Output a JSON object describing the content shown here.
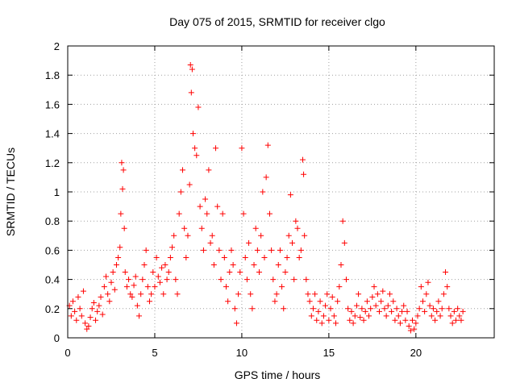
{
  "chart_data": {
    "type": "scatter",
    "title": "Day 075 of 2015, SRMTID for receiver clgo",
    "xlabel": "GPS time / hours",
    "ylabel": "SRMTID / TECUs",
    "xlim": [
      0,
      24.5
    ],
    "ylim": [
      0,
      2
    ],
    "x_ticks": [
      0,
      5,
      10,
      15,
      20
    ],
    "x_tick_labels": [
      "0",
      "5",
      "10",
      "15",
      "20"
    ],
    "y_ticks": [
      0,
      0.2,
      0.4,
      0.6,
      0.8,
      1,
      1.2,
      1.4,
      1.6,
      1.8,
      2
    ],
    "y_tick_labels": [
      "0",
      "0.2",
      "0.4",
      "0.6",
      "0.8",
      "1",
      "1.2",
      "1.4",
      "1.6",
      "1.8",
      "2"
    ],
    "grid": true,
    "marker": "plus",
    "color": "#ff0000",
    "series": [
      {
        "name": "SRMTID",
        "points": [
          [
            0.1,
            0.22
          ],
          [
            0.2,
            0.15
          ],
          [
            0.3,
            0.25
          ],
          [
            0.4,
            0.18
          ],
          [
            0.5,
            0.12
          ],
          [
            0.6,
            0.28
          ],
          [
            0.7,
            0.2
          ],
          [
            0.8,
            0.15
          ],
          [
            0.9,
            0.32
          ],
          [
            1.0,
            0.1
          ],
          [
            1.1,
            0.06
          ],
          [
            1.2,
            0.08
          ],
          [
            1.3,
            0.14
          ],
          [
            1.4,
            0.2
          ],
          [
            1.5,
            0.24
          ],
          [
            1.6,
            0.12
          ],
          [
            1.7,
            0.18
          ],
          [
            1.8,
            0.22
          ],
          [
            1.9,
            0.28
          ],
          [
            2.0,
            0.16
          ],
          [
            2.1,
            0.35
          ],
          [
            2.2,
            0.42
          ],
          [
            2.3,
            0.3
          ],
          [
            2.4,
            0.25
          ],
          [
            2.5,
            0.38
          ],
          [
            2.6,
            0.45
          ],
          [
            2.7,
            0.33
          ],
          [
            2.8,
            0.5
          ],
          [
            2.9,
            0.55
          ],
          [
            3.0,
            0.62
          ],
          [
            3.05,
            0.85
          ],
          [
            3.1,
            1.2
          ],
          [
            3.15,
            1.02
          ],
          [
            3.2,
            1.15
          ],
          [
            3.25,
            0.75
          ],
          [
            3.3,
            0.45
          ],
          [
            3.4,
            0.35
          ],
          [
            3.5,
            0.4
          ],
          [
            3.6,
            0.3
          ],
          [
            3.7,
            0.28
          ],
          [
            3.8,
            0.36
          ],
          [
            3.9,
            0.42
          ],
          [
            4.0,
            0.22
          ],
          [
            4.1,
            0.15
          ],
          [
            4.2,
            0.3
          ],
          [
            4.3,
            0.4
          ],
          [
            4.4,
            0.5
          ],
          [
            4.5,
            0.6
          ],
          [
            4.6,
            0.35
          ],
          [
            4.7,
            0.25
          ],
          [
            4.8,
            0.3
          ],
          [
            4.9,
            0.45
          ],
          [
            5.0,
            0.35
          ],
          [
            5.1,
            0.55
          ],
          [
            5.2,
            0.42
          ],
          [
            5.3,
            0.38
          ],
          [
            5.4,
            0.48
          ],
          [
            5.5,
            0.3
          ],
          [
            5.6,
            0.5
          ],
          [
            5.7,
            0.4
          ],
          [
            5.8,
            0.45
          ],
          [
            5.9,
            0.55
          ],
          [
            6.0,
            0.62
          ],
          [
            6.1,
            0.7
          ],
          [
            6.2,
            0.4
          ],
          [
            6.3,
            0.3
          ],
          [
            6.4,
            0.85
          ],
          [
            6.5,
            1.0
          ],
          [
            6.6,
            1.15
          ],
          [
            6.7,
            0.75
          ],
          [
            6.8,
            0.55
          ],
          [
            6.9,
            0.7
          ],
          [
            7.0,
            1.05
          ],
          [
            7.05,
            1.87
          ],
          [
            7.1,
            1.68
          ],
          [
            7.15,
            1.84
          ],
          [
            7.2,
            1.4
          ],
          [
            7.3,
            1.3
          ],
          [
            7.4,
            1.25
          ],
          [
            7.5,
            1.58
          ],
          [
            7.6,
            0.9
          ],
          [
            7.7,
            0.75
          ],
          [
            7.8,
            0.6
          ],
          [
            7.9,
            0.95
          ],
          [
            8.0,
            0.85
          ],
          [
            8.1,
            1.15
          ],
          [
            8.2,
            0.65
          ],
          [
            8.3,
            0.7
          ],
          [
            8.4,
            0.5
          ],
          [
            8.5,
            1.3
          ],
          [
            8.6,
            0.9
          ],
          [
            8.7,
            0.6
          ],
          [
            8.8,
            0.4
          ],
          [
            8.9,
            0.85
          ],
          [
            9.0,
            0.55
          ],
          [
            9.1,
            0.35
          ],
          [
            9.2,
            0.25
          ],
          [
            9.3,
            0.45
          ],
          [
            9.4,
            0.6
          ],
          [
            9.5,
            0.5
          ],
          [
            9.6,
            0.2
          ],
          [
            9.7,
            0.1
          ],
          [
            9.8,
            0.3
          ],
          [
            9.9,
            0.45
          ],
          [
            10.0,
            1.3
          ],
          [
            10.1,
            0.85
          ],
          [
            10.2,
            0.55
          ],
          [
            10.3,
            0.4
          ],
          [
            10.4,
            0.65
          ],
          [
            10.5,
            0.3
          ],
          [
            10.6,
            0.2
          ],
          [
            10.7,
            0.5
          ],
          [
            10.8,
            0.75
          ],
          [
            10.9,
            0.6
          ],
          [
            11.0,
            0.45
          ],
          [
            11.1,
            0.7
          ],
          [
            11.2,
            1.0
          ],
          [
            11.3,
            0.55
          ],
          [
            11.4,
            1.1
          ],
          [
            11.5,
            1.32
          ],
          [
            11.6,
            0.85
          ],
          [
            11.7,
            0.6
          ],
          [
            11.8,
            0.4
          ],
          [
            11.9,
            0.25
          ],
          [
            12.0,
            0.3
          ],
          [
            12.1,
            0.5
          ],
          [
            12.2,
            0.6
          ],
          [
            12.3,
            0.35
          ],
          [
            12.4,
            0.2
          ],
          [
            12.5,
            0.45
          ],
          [
            12.6,
            0.55
          ],
          [
            12.7,
            0.7
          ],
          [
            12.8,
            0.98
          ],
          [
            12.9,
            0.65
          ],
          [
            13.0,
            0.4
          ],
          [
            13.1,
            0.8
          ],
          [
            13.2,
            0.75
          ],
          [
            13.3,
            0.55
          ],
          [
            13.4,
            0.6
          ],
          [
            13.5,
            1.22
          ],
          [
            13.55,
            1.12
          ],
          [
            13.6,
            0.7
          ],
          [
            13.7,
            0.4
          ],
          [
            13.8,
            0.3
          ],
          [
            13.9,
            0.25
          ],
          [
            14.0,
            0.15
          ],
          [
            14.1,
            0.2
          ],
          [
            14.2,
            0.3
          ],
          [
            14.3,
            0.12
          ],
          [
            14.4,
            0.18
          ],
          [
            14.5,
            0.25
          ],
          [
            14.6,
            0.1
          ],
          [
            14.7,
            0.15
          ],
          [
            14.8,
            0.22
          ],
          [
            14.9,
            0.3
          ],
          [
            15.0,
            0.12
          ],
          [
            15.1,
            0.2
          ],
          [
            15.2,
            0.28
          ],
          [
            15.3,
            0.15
          ],
          [
            15.4,
            0.1
          ],
          [
            15.5,
            0.25
          ],
          [
            15.6,
            0.35
          ],
          [
            15.7,
            0.5
          ],
          [
            15.8,
            0.8
          ],
          [
            15.9,
            0.65
          ],
          [
            16.0,
            0.4
          ],
          [
            16.1,
            0.2
          ],
          [
            16.2,
            0.12
          ],
          [
            16.3,
            0.18
          ],
          [
            16.4,
            0.1
          ],
          [
            16.5,
            0.15
          ],
          [
            16.6,
            0.22
          ],
          [
            16.7,
            0.3
          ],
          [
            16.8,
            0.14
          ],
          [
            16.9,
            0.2
          ],
          [
            17.0,
            0.12
          ],
          [
            17.1,
            0.18
          ],
          [
            17.2,
            0.25
          ],
          [
            17.3,
            0.15
          ],
          [
            17.4,
            0.2
          ],
          [
            17.5,
            0.28
          ],
          [
            17.6,
            0.35
          ],
          [
            17.7,
            0.22
          ],
          [
            17.8,
            0.3
          ],
          [
            17.9,
            0.18
          ],
          [
            18.0,
            0.25
          ],
          [
            18.1,
            0.32
          ],
          [
            18.2,
            0.2
          ],
          [
            18.3,
            0.15
          ],
          [
            18.4,
            0.22
          ],
          [
            18.5,
            0.3
          ],
          [
            18.6,
            0.18
          ],
          [
            18.7,
            0.25
          ],
          [
            18.8,
            0.12
          ],
          [
            18.9,
            0.2
          ],
          [
            19.0,
            0.15
          ],
          [
            19.1,
            0.1
          ],
          [
            19.2,
            0.18
          ],
          [
            19.3,
            0.22
          ],
          [
            19.4,
            0.12
          ],
          [
            19.5,
            0.18
          ],
          [
            19.6,
            0.08
          ],
          [
            19.7,
            0.05
          ],
          [
            19.8,
            0.12
          ],
          [
            19.9,
            0.06
          ],
          [
            20.0,
            0.1
          ],
          [
            20.1,
            0.15
          ],
          [
            20.2,
            0.2
          ],
          [
            20.3,
            0.35
          ],
          [
            20.4,
            0.25
          ],
          [
            20.5,
            0.18
          ],
          [
            20.6,
            0.3
          ],
          [
            20.7,
            0.38
          ],
          [
            20.8,
            0.22
          ],
          [
            20.9,
            0.15
          ],
          [
            21.0,
            0.2
          ],
          [
            21.1,
            0.12
          ],
          [
            21.2,
            0.18
          ],
          [
            21.3,
            0.25
          ],
          [
            21.4,
            0.15
          ],
          [
            21.5,
            0.2
          ],
          [
            21.6,
            0.3
          ],
          [
            21.7,
            0.45
          ],
          [
            21.8,
            0.35
          ],
          [
            21.9,
            0.2
          ],
          [
            22.0,
            0.15
          ],
          [
            22.1,
            0.1
          ],
          [
            22.2,
            0.18
          ],
          [
            22.3,
            0.12
          ],
          [
            22.4,
            0.2
          ],
          [
            22.5,
            0.15
          ],
          [
            22.6,
            0.12
          ],
          [
            22.7,
            0.18
          ]
        ]
      }
    ]
  }
}
